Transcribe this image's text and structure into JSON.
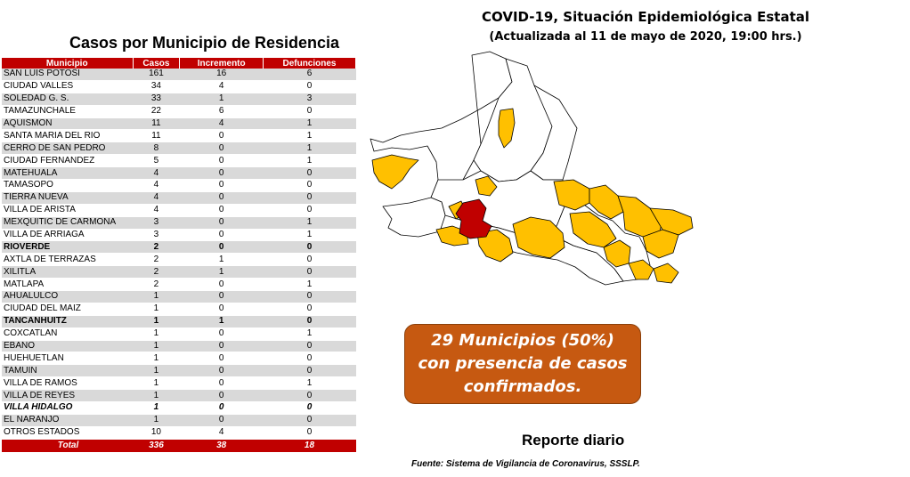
{
  "header": {
    "title": "COVID-19, Situación Epidemiológica Estatal",
    "subtitle": "(Actualizada al 11 de mayo de 2020, 19:00 hrs.)"
  },
  "table": {
    "title": "Casos por Municipio de Residencia",
    "columns": [
      "Municipio",
      "Casos",
      "Incremento",
      "Defunciones"
    ],
    "rows": [
      {
        "municipio": "SAN LUIS POTOSI",
        "casos": "161",
        "incremento": "16",
        "defunciones": "6",
        "style": ""
      },
      {
        "municipio": "CIUDAD VALLES",
        "casos": "34",
        "incremento": "4",
        "defunciones": "0",
        "style": ""
      },
      {
        "municipio": "SOLEDAD G. S.",
        "casos": "33",
        "incremento": "1",
        "defunciones": "3",
        "style": ""
      },
      {
        "municipio": "TAMAZUNCHALE",
        "casos": "22",
        "incremento": "6",
        "defunciones": "0",
        "style": ""
      },
      {
        "municipio": "AQUISMON",
        "casos": "11",
        "incremento": "4",
        "defunciones": "1",
        "style": ""
      },
      {
        "municipio": "SANTA MARIA DEL RIO",
        "casos": "11",
        "incremento": "0",
        "defunciones": "1",
        "style": ""
      },
      {
        "municipio": "CERRO DE SAN PEDRO",
        "casos": "8",
        "incremento": "0",
        "defunciones": "1",
        "style": ""
      },
      {
        "municipio": "CIUDAD FERNANDEZ",
        "casos": "5",
        "incremento": "0",
        "defunciones": "1",
        "style": ""
      },
      {
        "municipio": "MATEHUALA",
        "casos": "4",
        "incremento": "0",
        "defunciones": "0",
        "style": ""
      },
      {
        "municipio": "TAMASOPO",
        "casos": "4",
        "incremento": "0",
        "defunciones": "0",
        "style": ""
      },
      {
        "municipio": "TIERRA NUEVA",
        "casos": "4",
        "incremento": "0",
        "defunciones": "0",
        "style": ""
      },
      {
        "municipio": "VILLA DE ARISTA",
        "casos": "4",
        "incremento": "0",
        "defunciones": "0",
        "style": ""
      },
      {
        "municipio": "MEXQUITIC DE CARMONA",
        "casos": "3",
        "incremento": "0",
        "defunciones": "1",
        "style": ""
      },
      {
        "municipio": "VILLA DE ARRIAGA",
        "casos": "3",
        "incremento": "0",
        "defunciones": "1",
        "style": ""
      },
      {
        "municipio": "RIOVERDE",
        "casos": "2",
        "incremento": "0",
        "defunciones": "0",
        "style": "bold"
      },
      {
        "municipio": "AXTLA DE TERRAZAS",
        "casos": "2",
        "incremento": "1",
        "defunciones": "0",
        "style": ""
      },
      {
        "municipio": "XILITLA",
        "casos": "2",
        "incremento": "1",
        "defunciones": "0",
        "style": ""
      },
      {
        "municipio": "MATLAPA",
        "casos": "2",
        "incremento": "0",
        "defunciones": "1",
        "style": ""
      },
      {
        "municipio": "AHUALULCO",
        "casos": "1",
        "incremento": "0",
        "defunciones": "0",
        "style": ""
      },
      {
        "municipio": "CIUDAD DEL MAIZ",
        "casos": "1",
        "incremento": "0",
        "defunciones": "0",
        "style": ""
      },
      {
        "municipio": "TANCANHUITZ",
        "casos": "1",
        "incremento": "1",
        "defunciones": "0",
        "style": "bold"
      },
      {
        "municipio": "COXCATLAN",
        "casos": "1",
        "incremento": "0",
        "defunciones": "1",
        "style": ""
      },
      {
        "municipio": "EBANO",
        "casos": "1",
        "incremento": "0",
        "defunciones": "0",
        "style": ""
      },
      {
        "municipio": "HUEHUETLAN",
        "casos": "1",
        "incremento": "0",
        "defunciones": "0",
        "style": ""
      },
      {
        "municipio": "TAMUIN",
        "casos": "1",
        "incremento": "0",
        "defunciones": "0",
        "style": ""
      },
      {
        "municipio": "VILLA DE RAMOS",
        "casos": "1",
        "incremento": "0",
        "defunciones": "1",
        "style": ""
      },
      {
        "municipio": "VILLA DE REYES",
        "casos": "1",
        "incremento": "0",
        "defunciones": "0",
        "style": ""
      },
      {
        "municipio": "VILLA HIDALGO",
        "casos": "1",
        "incremento": "0",
        "defunciones": "0",
        "style": "ital"
      },
      {
        "municipio": "EL NARANJO",
        "casos": "1",
        "incremento": "0",
        "defunciones": "0",
        "style": ""
      },
      {
        "municipio": "OTROS ESTADOS",
        "casos": "10",
        "incremento": "4",
        "defunciones": "0",
        "style": ""
      }
    ],
    "total": {
      "label": "Total",
      "casos": "336",
      "incremento": "38",
      "defunciones": "18"
    }
  },
  "map": {
    "colors": {
      "outline": "#000000",
      "none": "#ffffff",
      "cases": "#ffc000",
      "highest": "#c00000"
    }
  },
  "callout": {
    "text": "29 Municipios (50%) con presencia de casos confirmados.",
    "color": "#c65911"
  },
  "footer": {
    "report": "Reporte diario",
    "source": "Fuente: Sistema de Vigilancia de Coronavirus, SSSLP."
  }
}
